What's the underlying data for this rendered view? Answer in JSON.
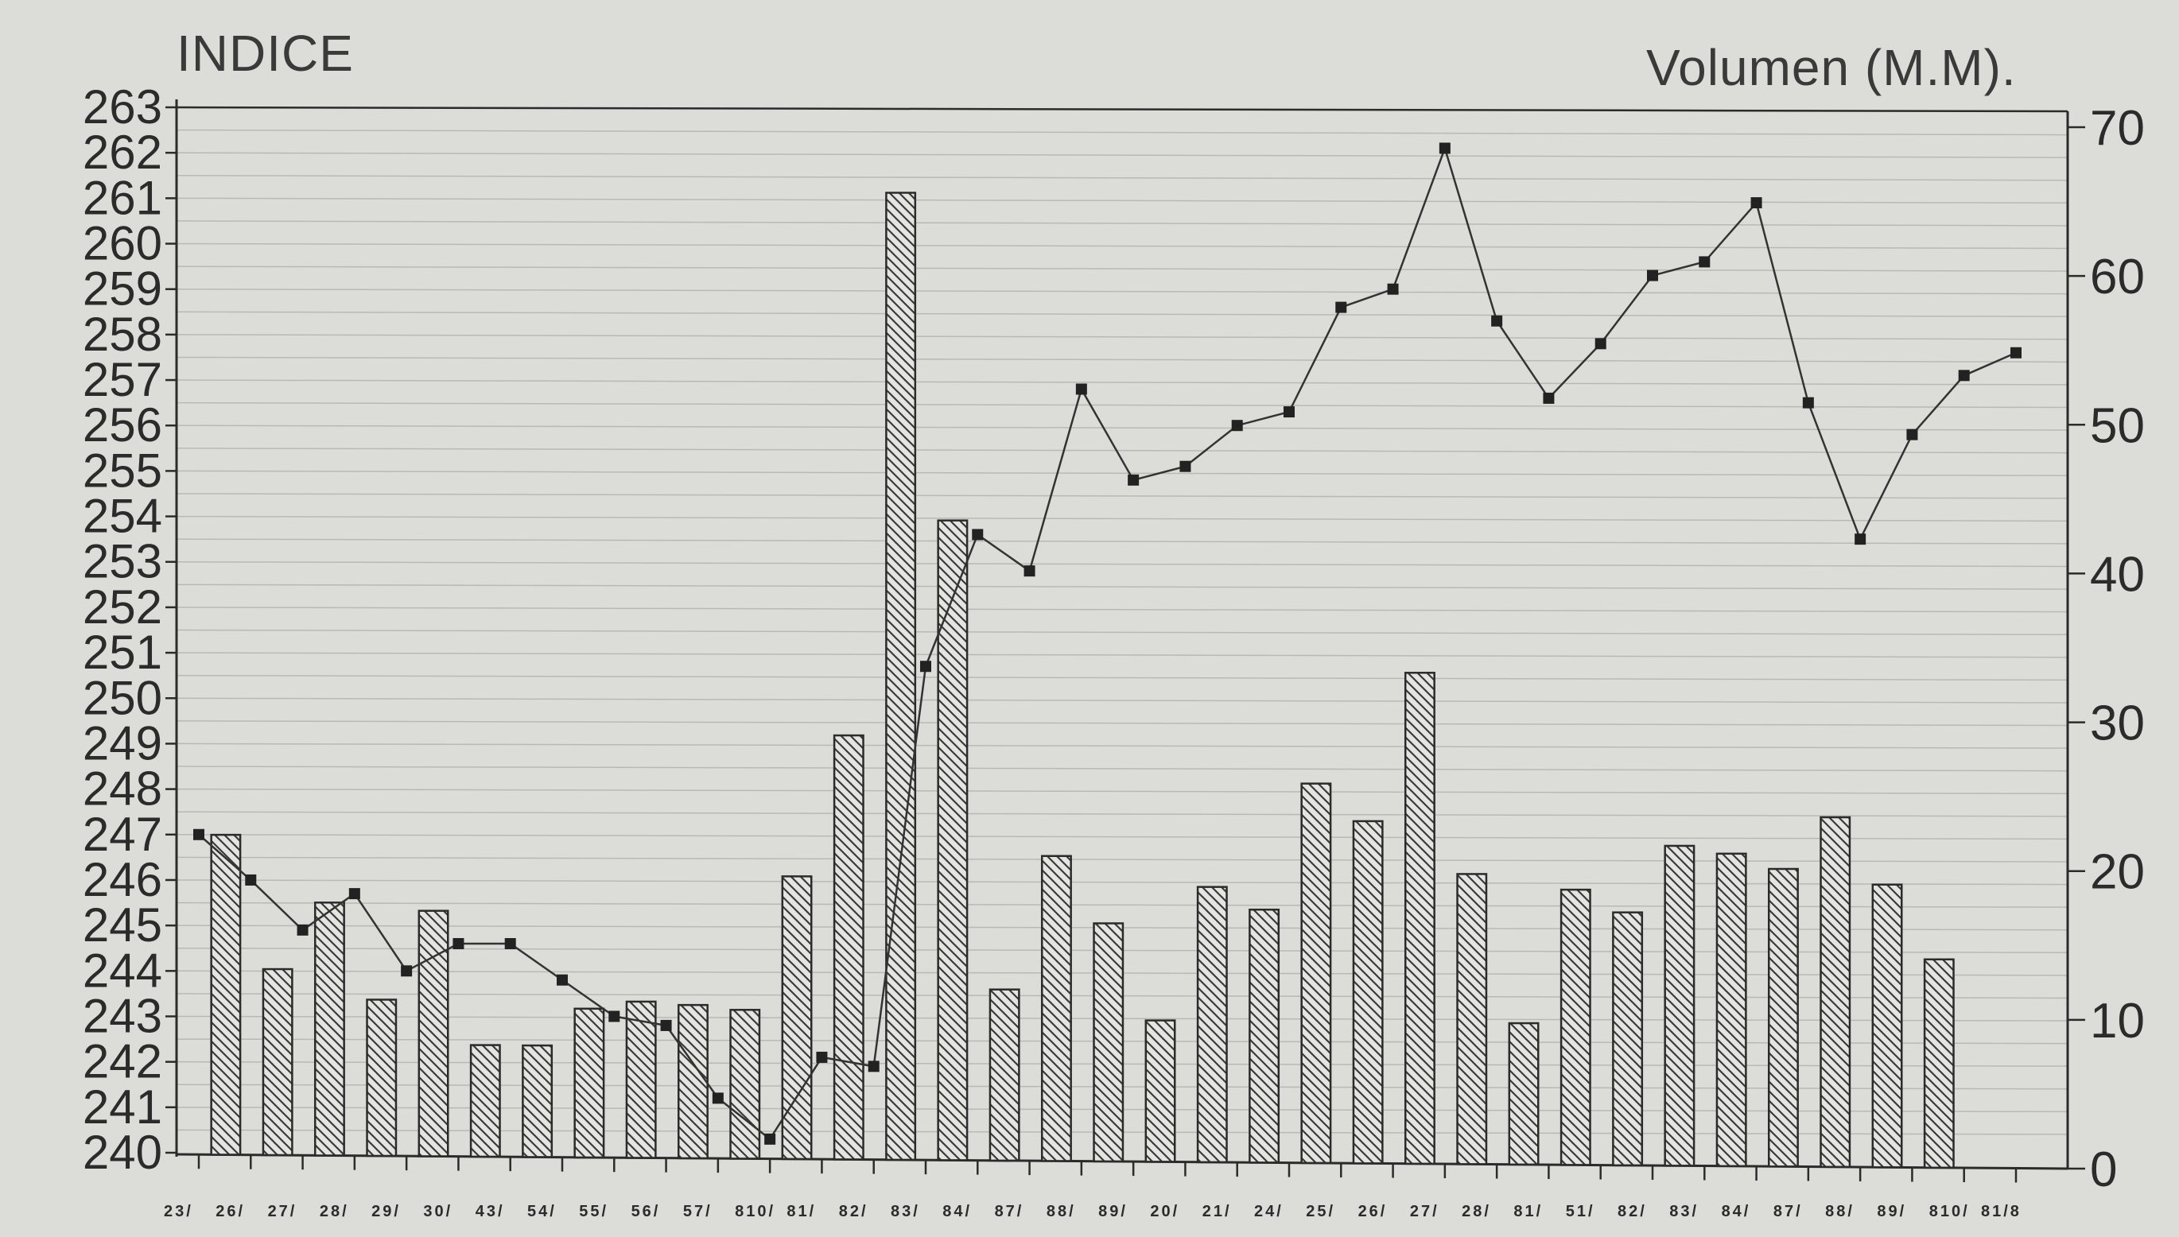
{
  "chart_data": {
    "type": "bar",
    "title_left": "INDICE",
    "title_right": "Volumen (M.M).",
    "left_axis": {
      "min": 240,
      "max": 263,
      "ticks": [
        240,
        241,
        242,
        243,
        244,
        245,
        246,
        247,
        248,
        249,
        250,
        251,
        252,
        253,
        254,
        255,
        256,
        257,
        258,
        259,
        260,
        261,
        262,
        263
      ]
    },
    "right_axis": {
      "min": 0,
      "max": 70,
      "ticks": [
        0,
        10,
        20,
        30,
        40,
        50,
        60,
        70
      ]
    },
    "x_tick_labels": [
      "23/",
      "26/",
      "27/",
      "28/",
      "29/",
      "30/",
      "43/",
      "54/",
      "55/",
      "56/",
      "57/",
      "810/",
      "81/",
      "82/",
      "83/",
      "84/",
      "87/",
      "88/",
      "89/",
      "20/",
      "21/",
      "24/",
      "25/",
      "26/",
      "27/",
      "28/",
      "81/",
      "51/",
      "82/",
      "83/",
      "84/",
      "87/",
      "88/",
      "89/",
      "810/",
      "81/8"
    ],
    "series": [
      {
        "kind": "bar",
        "axis": "right",
        "values": [
          null,
          21.5,
          12.5,
          17,
          10.5,
          16.5,
          7.5,
          7.5,
          10,
          10.5,
          10.3,
          10,
          19,
          28.5,
          65,
          43,
          11.5,
          20.5,
          16,
          9.5,
          18.5,
          17,
          25.5,
          23,
          33,
          19.5,
          9.5,
          18.5,
          17,
          21.5,
          21,
          20,
          23.5,
          19,
          14,
          null
        ]
      },
      {
        "kind": "line",
        "axis": "left",
        "values": [
          247,
          246,
          244.9,
          245.7,
          244,
          244.6,
          244.6,
          243.8,
          243,
          242.8,
          241.2,
          240.3,
          242.1,
          241.9,
          250.7,
          253.6,
          252.8,
          256.8,
          254.8,
          255.1,
          256,
          256.3,
          258.6,
          259,
          262.1,
          258.3,
          256.6,
          257.8,
          259.3,
          259.6,
          260.9,
          256.5,
          253.5,
          255.8,
          257.1,
          257.6
        ]
      }
    ],
    "grid": "horizontal",
    "colors": {
      "background": "#dcdcd8",
      "ink": "#2b2b2b",
      "gridline": "#b9b9b4"
    }
  }
}
